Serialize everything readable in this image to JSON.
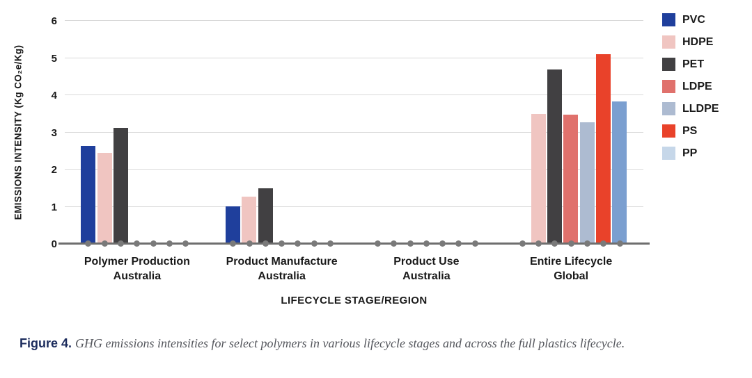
{
  "figure": {
    "caption_label": "Figure 4.",
    "caption_text": "GHG emissions intensities for select polymers in various lifecycle stages and across the full plastics lifecycle."
  },
  "chart_data": {
    "type": "bar",
    "title": "",
    "xlabel": "LIFECYCLE STAGE/REGION",
    "ylabel": "EMISSIONS INTENSITY (Kg CO₂e/Kg)",
    "ylim": [
      0,
      6
    ],
    "yticks": [
      0,
      1,
      2,
      3,
      4,
      5,
      6
    ],
    "grid": true,
    "legend_position": "right",
    "categories": [
      {
        "line1": "Polymer Production",
        "line2": "Australia"
      },
      {
        "line1": "Product Manufacture",
        "line2": "Australia"
      },
      {
        "line1": "Product Use",
        "line2": "Australia"
      },
      {
        "line1": "Entire Lifecycle",
        "line2": "Global"
      }
    ],
    "series": [
      {
        "name": "PVC",
        "color": "#1f3f9c",
        "legend_color": "#1f3f9c",
        "values": [
          2.64,
          1.01,
          0.04,
          0
        ]
      },
      {
        "name": "HDPE",
        "color": "#f0c5c1",
        "legend_color": "#f0c5c1",
        "values": [
          2.44,
          1.28,
          0.03,
          3.5
        ]
      },
      {
        "name": "PET",
        "color": "#414042",
        "legend_color": "#414042",
        "values": [
          3.13,
          1.5,
          0.04,
          4.69
        ]
      },
      {
        "name": "LDPE",
        "color": "#e0716c",
        "legend_color": "#e0716c",
        "values": [
          0,
          0,
          0,
          3.48
        ]
      },
      {
        "name": "LLDPE",
        "color": "#adbbd1",
        "legend_color": "#adbbd1",
        "values": [
          0,
          0,
          0,
          3.28
        ]
      },
      {
        "name": "PS",
        "color": "#e9422a",
        "legend_color": "#e9422a",
        "values": [
          0,
          0,
          0,
          5.1
        ]
      },
      {
        "name": "PP",
        "color": "#7b9fd0",
        "legend_color": "#c6d7e9",
        "values": [
          0,
          0,
          0,
          3.83
        ]
      }
    ],
    "marker_note": "gray dot at zero baseline under every bar position",
    "baseline_color": "#6e6e6e",
    "gridline_color": "#d9d9d9",
    "dot_color": "#7a7a7a"
  }
}
